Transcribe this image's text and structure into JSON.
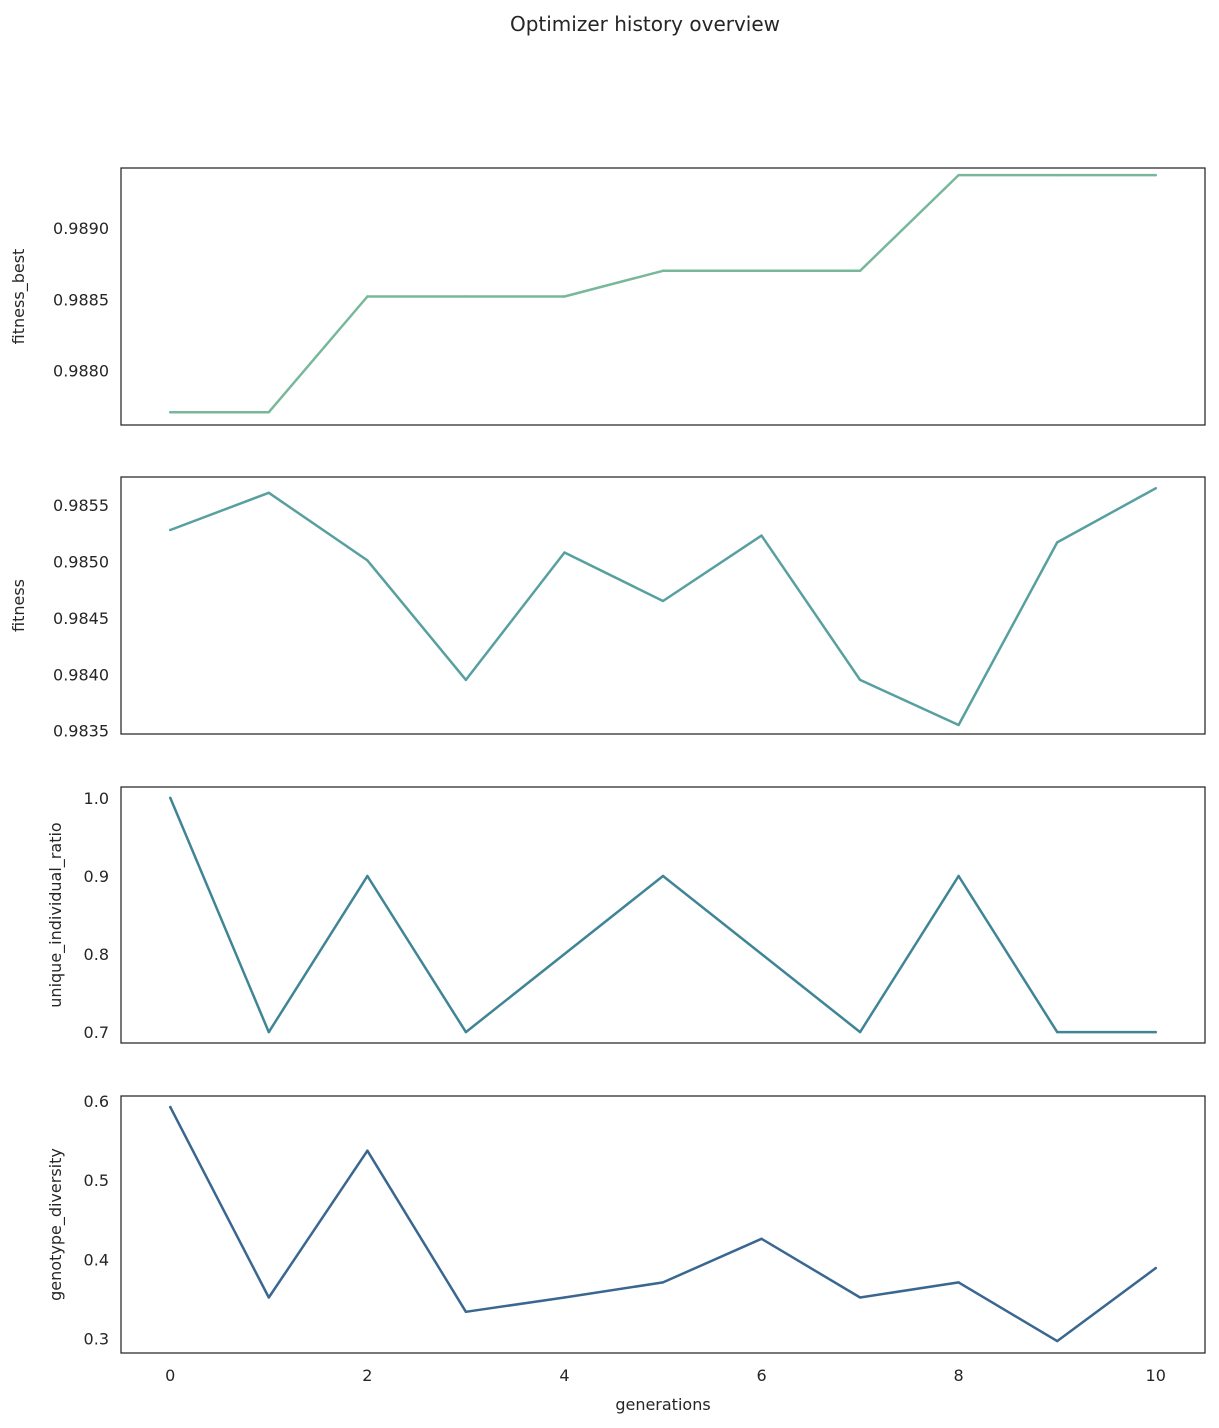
{
  "chart_data": {
    "type": "line",
    "title": "Optimizer history overview",
    "xlabel": "generations",
    "x": [
      0,
      1,
      2,
      3,
      4,
      5,
      6,
      7,
      8,
      9,
      10
    ],
    "xlim": [
      -0.5,
      10.5
    ],
    "xticks": [
      "0",
      "2",
      "4",
      "6",
      "8",
      "10"
    ],
    "grid": false,
    "panels": [
      {
        "ylabel": "fitness_best",
        "color": "#78b89a",
        "ylim": [
          0.98762,
          0.98942
        ],
        "yticks": [
          "0.9880",
          "0.9885",
          "0.9890"
        ],
        "values": [
          0.98771,
          0.98771,
          0.98852,
          0.98852,
          0.98852,
          0.9887,
          0.9887,
          0.9887,
          0.98937,
          0.98937,
          0.98937
        ]
      },
      {
        "ylabel": "fitness",
        "color": "#58a0a0",
        "ylim": [
          0.98347,
          0.98575
        ],
        "yticks": [
          "0.9835",
          "0.9840",
          "0.9845",
          "0.9850",
          "0.9855"
        ],
        "values": [
          0.98528,
          0.98561,
          0.98501,
          0.98395,
          0.98508,
          0.98465,
          0.98523,
          0.98395,
          0.98355,
          0.98517,
          0.98565
        ]
      },
      {
        "ylabel": "unique_individual_ratio",
        "color": "#3f8595",
        "ylim": [
          0.686,
          1.014
        ],
        "yticks": [
          "0.7",
          "0.8",
          "0.9",
          "1.0"
        ],
        "values": [
          1.0,
          0.7,
          0.9,
          0.7,
          0.8,
          0.9,
          0.8,
          0.7,
          0.9,
          0.7,
          0.7
        ]
      },
      {
        "ylabel": "genotype_diversity",
        "color": "#3a6790",
        "ylim": [
          0.282,
          0.606
        ],
        "yticks": [
          "0.3",
          "0.4",
          "0.5",
          "0.6"
        ],
        "values": [
          0.592,
          0.352,
          0.537,
          0.334,
          0.352,
          0.371,
          0.426,
          0.352,
          0.371,
          0.297,
          0.389
        ]
      }
    ]
  }
}
